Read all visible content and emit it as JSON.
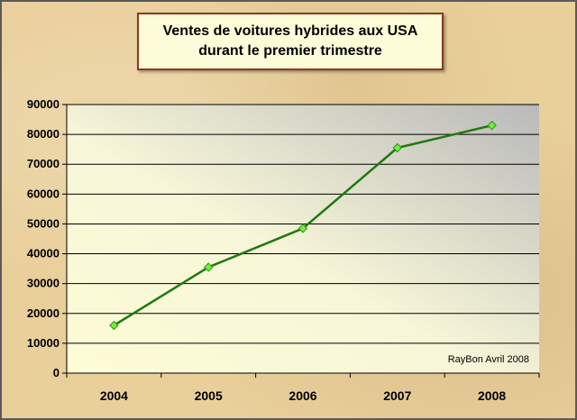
{
  "chart_data": {
    "type": "line",
    "title": "Ventes de voitures hybrides aux USA",
    "subtitle": "durant le premier trimestre",
    "categories": [
      "2004",
      "2005",
      "2006",
      "2007",
      "2008"
    ],
    "series": [
      {
        "values": [
          16000,
          35500,
          48500,
          75500,
          83000
        ]
      }
    ],
    "ylim": [
      0,
      90000
    ],
    "yticks": [
      0,
      10000,
      20000,
      30000,
      40000,
      50000,
      60000,
      70000,
      80000,
      90000
    ],
    "grid": true,
    "annotation": "RayBon Avril 2008",
    "colors": {
      "line": "#1f7a10",
      "marker": "#6cf23a",
      "marker_edge": "#2f8f1a"
    }
  }
}
